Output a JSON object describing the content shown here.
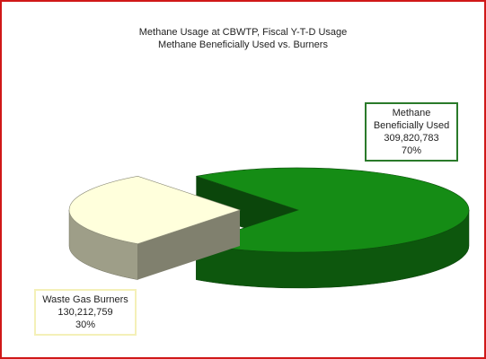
{
  "chart_data": {
    "type": "pie3d",
    "title": "Methane Usage at CBWTP, Fiscal Y-T-D Usage",
    "subtitle": "Methane Beneficially Used vs. Burners",
    "categories": [
      "Methane Beneficially Used",
      "Waste Gas Burners"
    ],
    "values": [
      309820783,
      130212759
    ],
    "value_labels": [
      "309,820,783",
      "130,212,759"
    ],
    "percents": [
      70,
      30
    ],
    "percent_labels": [
      "70%",
      "30%"
    ],
    "colors": [
      "#158c15",
      "#ffffdc"
    ],
    "exploded": [
      false,
      true
    ]
  }
}
